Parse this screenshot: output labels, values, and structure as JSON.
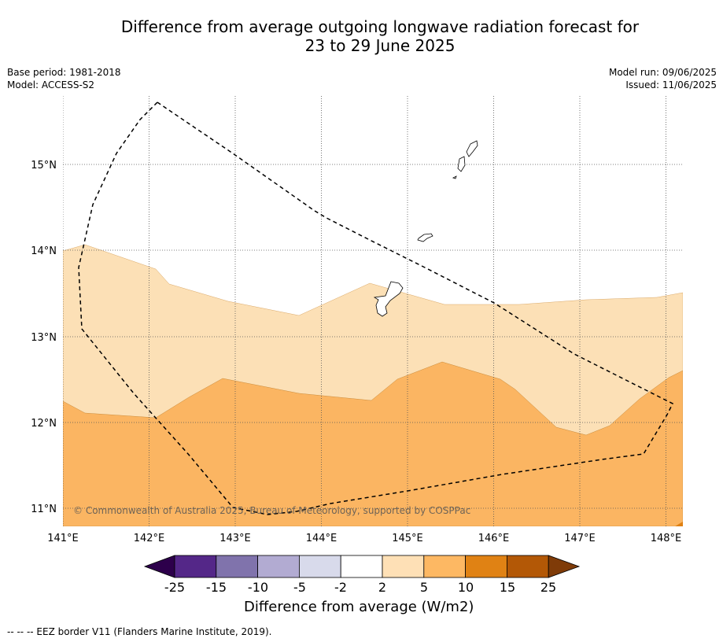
{
  "title_line1": "Difference from average outgoing longwave radiation forecast for",
  "title_line2": "23 to 29 June 2025",
  "meta": {
    "base_period": "Base period: 1981-2018",
    "model": "Model: ACCESS-S2",
    "model_run": "Model run: 09/06/2025",
    "issued": "Issued: 11/06/2025"
  },
  "map": {
    "lon_labels": [
      "141°E",
      "142°E",
      "143°E",
      "144°E",
      "145°E",
      "146°E",
      "147°E",
      "148°E"
    ],
    "lat_labels": [
      "15°N",
      "14°N",
      "13°N",
      "12°N",
      "11°N"
    ],
    "credit": "© Commonwealth of Australia 2025, Bureau of Meteorology, supported by COSPPac",
    "colors": {
      "band_2_5": "#fce0b6",
      "band_5_10": "#fbb562",
      "band_10_15": "#e08113",
      "border": "#000000",
      "gridline": "#555555"
    }
  },
  "colorbar": {
    "ticks": [
      "-25",
      "-15",
      "-10",
      "-5",
      "-2",
      "2",
      "5",
      "10",
      "15",
      "25"
    ],
    "colors": [
      "#2d004b",
      "#542788",
      "#8073ac",
      "#b2abd2",
      "#d8daeb",
      "#ffffff",
      "#fee0b6",
      "#fdb863",
      "#e08214",
      "#b35806",
      "#7f3b08"
    ],
    "label": "Difference from average (W/m2)"
  },
  "footer": "--  --  -- EEZ border V11 (Flanders Marine Institute, 2019)."
}
